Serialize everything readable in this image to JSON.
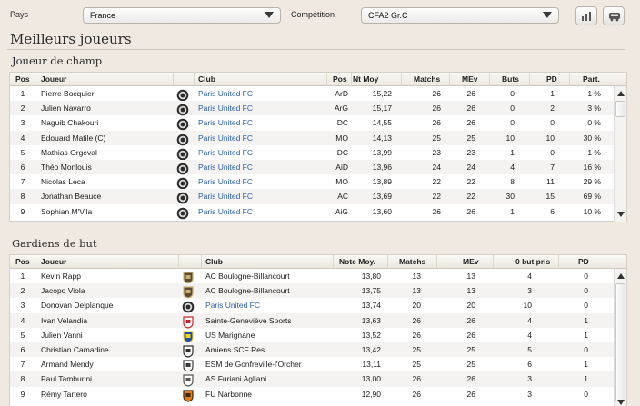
{
  "filters": {
    "country_label": "Pays",
    "country_value": "France",
    "competition_label": "Compétition",
    "competition_value": "CFA2 Gr.C"
  },
  "page_title": "Meilleurs joueurs",
  "field_players": {
    "section_title": "Joueur de champ",
    "headers": [
      "Pos",
      "Joueur",
      "Club",
      "Pos",
      "Nt Moy",
      "Matchs",
      "MEv",
      "Buts",
      "PD",
      "Part."
    ],
    "rows": [
      [
        "1",
        "Pierre Bocquier",
        "Paris United FC",
        "ArD",
        "15,22",
        "26",
        "26",
        "0",
        "1",
        "1 %"
      ],
      [
        "2",
        "Julien Navarro",
        "Paris United FC",
        "ArG",
        "15,17",
        "26",
        "26",
        "0",
        "2",
        "3 %"
      ],
      [
        "3",
        "Naguib Chakouri",
        "Paris United FC",
        "DC",
        "14,55",
        "26",
        "26",
        "0",
        "0",
        "0 %"
      ],
      [
        "4",
        "Edouard Matile (C)",
        "Paris United FC",
        "MO",
        "14,13",
        "25",
        "25",
        "10",
        "10",
        "30 %"
      ],
      [
        "5",
        "Mathias Orgeval",
        "Paris United FC",
        "DC",
        "13,99",
        "23",
        "23",
        "1",
        "0",
        "1 %"
      ],
      [
        "6",
        "Théo Monlouis",
        "Paris United FC",
        "AiD",
        "13,96",
        "24",
        "24",
        "4",
        "7",
        "16 %"
      ],
      [
        "7",
        "Nicolas Leca",
        "Paris United FC",
        "MO",
        "13,89",
        "22",
        "22",
        "8",
        "11",
        "29 %"
      ],
      [
        "8",
        "Jonathan Beauce",
        "Paris United FC",
        "AC",
        "13,69",
        "22",
        "22",
        "30",
        "15",
        "69 %"
      ],
      [
        "9",
        "Sophian M'Vila",
        "Paris United FC",
        "AiG",
        "13,60",
        "26",
        "26",
        "1",
        "6",
        "10 %"
      ]
    ]
  },
  "goalkeepers": {
    "section_title": "Gardiens de but",
    "headers": [
      "Pos",
      "Joueur",
      "Club",
      "Note Moy.",
      "Matchs",
      "MEv",
      "0 but pris",
      "PD"
    ],
    "rows": [
      [
        "1",
        "Kevin Rapp",
        "AC Boulogne-Billancourt",
        "13,80",
        "13",
        "13",
        "4",
        "0"
      ],
      [
        "2",
        "Jacopo Viola",
        "AC Boulogne-Billancourt",
        "13,75",
        "13",
        "13",
        "3",
        "0"
      ],
      [
        "3",
        "Donovan Delplanque",
        "Paris United FC",
        "13,74",
        "20",
        "20",
        "10",
        "0"
      ],
      [
        "4",
        "Ivan Velandia",
        "Sainte-Geneviève Sports",
        "13,63",
        "26",
        "26",
        "4",
        "1"
      ],
      [
        "5",
        "Julien Vanni",
        "US Marignane",
        "13,52",
        "26",
        "26",
        "4",
        "1"
      ],
      [
        "6",
        "Christian Camadine",
        "Amiens SCF Res",
        "13,42",
        "25",
        "25",
        "5",
        "0"
      ],
      [
        "7",
        "Armand Mendy",
        "ESM de Gonfreville-l'Orcher",
        "13,11",
        "25",
        "25",
        "6",
        "1"
      ],
      [
        "8",
        "Paul Tamburini",
        "AS Furiani Agliani",
        "13,00",
        "26",
        "26",
        "3",
        "1"
      ],
      [
        "9",
        "Rémy Tartero",
        "FU Narbonne",
        "12,90",
        "26",
        "26",
        "3",
        "0"
      ]
    ],
    "club_badges": [
      "boulogne-badge-icon",
      "boulogne-badge-icon",
      "paris-united-badge-icon",
      "sainte-genevieve-badge-icon",
      "marignane-badge-icon",
      "amiens-badge-icon",
      "gonfreville-badge-icon",
      "furiani-badge-icon",
      "narbonne-badge-icon"
    ]
  },
  "colors": {
    "link": "#2a5ea8",
    "background": "#efe9e1",
    "alt_row": "#f4f3f1"
  }
}
